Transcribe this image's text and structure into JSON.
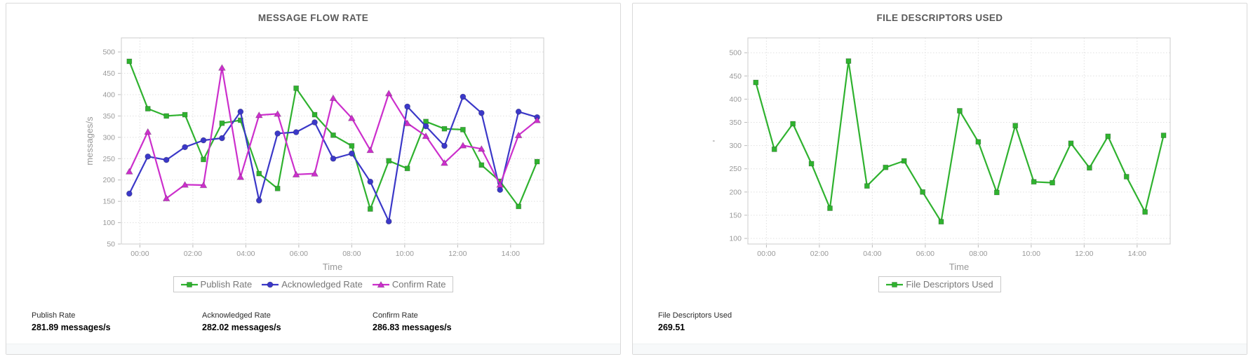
{
  "panels": [
    {
      "stats": [
        {
          "label": "Publish Rate",
          "value": "281.89 messages/s"
        },
        {
          "label": "Acknowledged Rate",
          "value": "282.02 messages/s"
        },
        {
          "label": "Confirm Rate",
          "value": "286.83 messages/s"
        }
      ]
    },
    {
      "stats": [
        {
          "label": "File Descriptors Used",
          "value": "269.51"
        }
      ]
    }
  ],
  "chart_data": [
    {
      "type": "line",
      "title": "MESSAGE FLOW RATE",
      "xlabel": "Time",
      "ylabel": "messages/s",
      "grid": true,
      "legend_position": "bottom",
      "xlim": [
        -0.7,
        15.25
      ],
      "ylim": [
        50,
        533
      ],
      "yticks": [
        50,
        100,
        150,
        200,
        250,
        300,
        350,
        400,
        450,
        500
      ],
      "x_tick_hours": [
        0,
        2,
        4,
        6,
        8,
        10,
        12,
        14
      ],
      "x_tick_labels": [
        "00:00",
        "02:00",
        "04:00",
        "06:00",
        "08:00",
        "10:00",
        "12:00",
        "14:00"
      ],
      "x_hours": [
        -0.4,
        0.3,
        1.0,
        1.7,
        2.4,
        3.1,
        3.8,
        4.5,
        5.2,
        5.9,
        6.6,
        7.3,
        8.0,
        8.7,
        9.4,
        10.1,
        10.8,
        11.5,
        12.2,
        12.9,
        13.6,
        14.3,
        15.0
      ],
      "series": [
        {
          "name": "Publish Rate",
          "color": "#2fb22f",
          "marker": "square",
          "values": [
            478,
            367,
            350,
            353,
            248,
            333,
            340,
            215,
            180,
            415,
            353,
            305,
            280,
            132,
            245,
            227,
            337,
            320,
            318,
            235,
            197,
            138,
            243
          ]
        },
        {
          "name": "Acknowledged Rate",
          "color": "#3b38c8",
          "marker": "circle",
          "values": [
            168,
            255,
            247,
            277,
            293,
            298,
            360,
            152,
            309,
            312,
            335,
            250,
            262,
            196,
            103,
            372,
            326,
            280,
            395,
            357,
            177,
            360,
            347
          ]
        },
        {
          "name": "Confirm Rate",
          "color": "#cc2fcc",
          "marker": "triangle",
          "values": [
            220,
            313,
            157,
            189,
            188,
            463,
            207,
            352,
            355,
            213,
            215,
            392,
            345,
            270,
            403,
            333,
            303,
            240,
            281,
            273,
            189,
            305,
            340
          ]
        }
      ],
      "axis_color": "#cccccc",
      "grid_color": "#e0e0e0",
      "tick_label_color": "#999999",
      "axis_title_color": "#999999"
    },
    {
      "type": "line",
      "title": "FILE DESCRIPTORS USED",
      "xlabel": "Time",
      "ylabel": "'",
      "grid": true,
      "legend_position": "bottom",
      "xlim": [
        -0.7,
        15.25
      ],
      "ylim": [
        88,
        532
      ],
      "yticks": [
        100,
        150,
        200,
        250,
        300,
        350,
        400,
        450,
        500
      ],
      "x_tick_hours": [
        0,
        2,
        4,
        6,
        8,
        10,
        12,
        14
      ],
      "x_tick_labels": [
        "00:00",
        "02:00",
        "04:00",
        "06:00",
        "08:00",
        "10:00",
        "12:00",
        "14:00"
      ],
      "x_hours": [
        -0.4,
        0.3,
        1.0,
        1.7,
        2.4,
        3.1,
        3.8,
        4.5,
        5.2,
        5.9,
        6.6,
        7.3,
        8.0,
        8.7,
        9.4,
        10.1,
        10.8,
        11.5,
        12.2,
        12.9,
        13.6,
        14.3,
        15.0
      ],
      "series": [
        {
          "name": "File Descriptors Used",
          "color": "#2fb22f",
          "marker": "square",
          "values": [
            436,
            292,
            347,
            261,
            165,
            482,
            213,
            253,
            267,
            200,
            136,
            375,
            308,
            199,
            343,
            222,
            220,
            305,
            252,
            320,
            233,
            157,
            322
          ]
        }
      ],
      "axis_color": "#cccccc",
      "grid_color": "#e0e0e0",
      "tick_label_color": "#999999",
      "axis_title_color": "#999999"
    }
  ]
}
